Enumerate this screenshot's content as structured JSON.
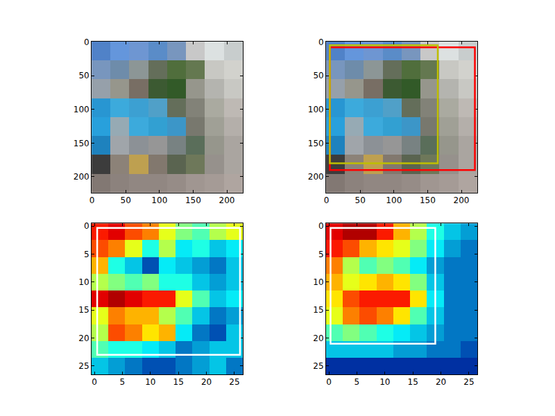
{
  "chart_data": [
    {
      "type": "image",
      "extent": [
        -0.5,
        223.5
      ],
      "pixels": [
        [
          [
            80,
            130,
            200
          ],
          [
            100,
            150,
            220
          ],
          [
            110,
            150,
            210
          ],
          [
            90,
            140,
            200
          ],
          [
            120,
            150,
            190
          ],
          [
            200,
            200,
            200
          ],
          [
            220,
            225,
            225
          ],
          [
            200,
            205,
            205
          ]
        ],
        [
          [
            120,
            150,
            190
          ],
          [
            110,
            140,
            170
          ],
          [
            140,
            150,
            150
          ],
          [
            100,
            110,
            90
          ],
          [
            80,
            110,
            60
          ],
          [
            100,
            120,
            80
          ],
          [
            200,
            200,
            195
          ],
          [
            210,
            210,
            205
          ]
        ],
        [
          [
            150,
            160,
            170
          ],
          [
            150,
            150,
            140
          ],
          [
            120,
            110,
            100
          ],
          [
            60,
            90,
            50
          ],
          [
            50,
            90,
            40
          ],
          [
            150,
            150,
            140
          ],
          [
            180,
            180,
            175
          ],
          [
            200,
            200,
            195
          ]
        ],
        [
          [
            40,
            150,
            210
          ],
          [
            60,
            170,
            220
          ],
          [
            60,
            160,
            210
          ],
          [
            80,
            160,
            200
          ],
          [
            100,
            110,
            90
          ],
          [
            130,
            130,
            120
          ],
          [
            170,
            170,
            160
          ],
          [
            190,
            185,
            180
          ]
        ],
        [
          [
            40,
            160,
            220
          ],
          [
            150,
            170,
            180
          ],
          [
            60,
            170,
            220
          ],
          [
            50,
            160,
            210
          ],
          [
            60,
            150,
            200
          ],
          [
            120,
            120,
            110
          ],
          [
            160,
            160,
            150
          ],
          [
            180,
            175,
            170
          ]
        ],
        [
          [
            30,
            130,
            190
          ],
          [
            160,
            165,
            170
          ],
          [
            140,
            145,
            150
          ],
          [
            150,
            150,
            150
          ],
          [
            120,
            130,
            130
          ],
          [
            90,
            110,
            90
          ],
          [
            150,
            150,
            140
          ],
          [
            170,
            165,
            160
          ]
        ],
        [
          [
            60,
            60,
            60
          ],
          [
            140,
            130,
            120
          ],
          [
            190,
            160,
            80
          ],
          [
            130,
            120,
            110
          ],
          [
            90,
            100,
            80
          ],
          [
            110,
            120,
            90
          ],
          [
            150,
            145,
            140
          ],
          [
            170,
            165,
            160
          ]
        ],
        [
          [
            130,
            120,
            115
          ],
          [
            140,
            130,
            125
          ],
          [
            145,
            135,
            130
          ],
          [
            145,
            135,
            130
          ],
          [
            150,
            140,
            135
          ],
          [
            160,
            150,
            145
          ],
          [
            165,
            155,
            150
          ],
          [
            175,
            165,
            160
          ]
        ]
      ],
      "xlim": [
        -0.5,
        223.5
      ],
      "ylim": [
        223.5,
        -0.5
      ],
      "xticks": [
        0,
        50,
        100,
        150,
        200
      ],
      "yticks": [
        0,
        50,
        100,
        150,
        200
      ],
      "boxes": []
    },
    {
      "type": "image",
      "extent": [
        -0.5,
        223.5
      ],
      "pixels": [
        [
          [
            80,
            130,
            200
          ],
          [
            100,
            150,
            220
          ],
          [
            110,
            150,
            210
          ],
          [
            90,
            140,
            200
          ],
          [
            120,
            150,
            190
          ],
          [
            200,
            200,
            200
          ],
          [
            220,
            225,
            225
          ],
          [
            200,
            205,
            205
          ]
        ],
        [
          [
            120,
            150,
            190
          ],
          [
            110,
            140,
            170
          ],
          [
            140,
            150,
            150
          ],
          [
            100,
            110,
            90
          ],
          [
            80,
            110,
            60
          ],
          [
            100,
            120,
            80
          ],
          [
            200,
            200,
            195
          ],
          [
            210,
            210,
            205
          ]
        ],
        [
          [
            150,
            160,
            170
          ],
          [
            150,
            150,
            140
          ],
          [
            120,
            110,
            100
          ],
          [
            60,
            90,
            50
          ],
          [
            50,
            90,
            40
          ],
          [
            150,
            150,
            140
          ],
          [
            180,
            180,
            175
          ],
          [
            200,
            200,
            195
          ]
        ],
        [
          [
            40,
            150,
            210
          ],
          [
            60,
            170,
            220
          ],
          [
            60,
            160,
            210
          ],
          [
            80,
            160,
            200
          ],
          [
            100,
            110,
            90
          ],
          [
            130,
            130,
            120
          ],
          [
            170,
            170,
            160
          ],
          [
            190,
            185,
            180
          ]
        ],
        [
          [
            40,
            160,
            220
          ],
          [
            150,
            170,
            180
          ],
          [
            60,
            170,
            220
          ],
          [
            50,
            160,
            210
          ],
          [
            60,
            150,
            200
          ],
          [
            120,
            120,
            110
          ],
          [
            160,
            160,
            150
          ],
          [
            180,
            175,
            170
          ]
        ],
        [
          [
            30,
            130,
            190
          ],
          [
            160,
            165,
            170
          ],
          [
            140,
            145,
            150
          ],
          [
            150,
            150,
            150
          ],
          [
            120,
            130,
            130
          ],
          [
            90,
            110,
            90
          ],
          [
            150,
            150,
            140
          ],
          [
            170,
            165,
            160
          ]
        ],
        [
          [
            60,
            60,
            60
          ],
          [
            140,
            130,
            120
          ],
          [
            190,
            160,
            80
          ],
          [
            130,
            120,
            110
          ],
          [
            90,
            100,
            80
          ],
          [
            110,
            120,
            90
          ],
          [
            150,
            145,
            140
          ],
          [
            170,
            165,
            160
          ]
        ],
        [
          [
            130,
            120,
            115
          ],
          [
            140,
            130,
            125
          ],
          [
            145,
            135,
            130
          ],
          [
            145,
            135,
            130
          ],
          [
            150,
            140,
            135
          ],
          [
            160,
            150,
            145
          ],
          [
            165,
            155,
            150
          ],
          [
            175,
            165,
            160
          ]
        ]
      ],
      "xlim": [
        -0.5,
        223.5
      ],
      "ylim": [
        223.5,
        -0.5
      ],
      "xticks": [
        0,
        50,
        100,
        150,
        200
      ],
      "yticks": [
        0,
        50,
        100,
        150,
        200
      ],
      "boxes": [
        {
          "x0": 5,
          "y0": 8,
          "x1": 220,
          "y1": 190,
          "color": "#ff0000"
        },
        {
          "x0": 5,
          "y0": 5,
          "x1": 165,
          "y1": 180,
          "color": "#bfbf00"
        }
      ]
    },
    {
      "type": "heatmap",
      "x": [
        1,
        4,
        7,
        10,
        13,
        16,
        19,
        22,
        25
      ],
      "y": [
        1,
        4,
        7,
        10,
        13,
        16,
        19,
        22,
        25
      ],
      "cells": [
        [
          0.85,
          0.9,
          0.8,
          0.75,
          0.6,
          0.5,
          0.45,
          0.55,
          0.6
        ],
        [
          0.8,
          0.75,
          0.6,
          0.4,
          0.55,
          0.35,
          0.4,
          0.3,
          0.35
        ],
        [
          0.7,
          0.4,
          0.3,
          0.15,
          0.35,
          0.3,
          0.25,
          0.2,
          0.3
        ],
        [
          0.55,
          0.5,
          0.45,
          0.5,
          0.4,
          0.4,
          0.3,
          0.25,
          0.3
        ],
        [
          0.9,
          0.95,
          0.9,
          0.85,
          0.85,
          0.6,
          0.45,
          0.3,
          0.35
        ],
        [
          0.6,
          0.75,
          0.7,
          0.7,
          0.55,
          0.45,
          0.3,
          0.2,
          0.25
        ],
        [
          0.55,
          0.8,
          0.75,
          0.65,
          0.7,
          0.35,
          0.2,
          0.15,
          0.3
        ],
        [
          0.45,
          0.4,
          0.4,
          0.35,
          0.3,
          0.2,
          0.25,
          0.3,
          0.3
        ],
        [
          0.3,
          0.25,
          0.2,
          0.15,
          0.15,
          0.2,
          0.25,
          0.3,
          0.2
        ]
      ],
      "zlim": [
        0,
        1
      ],
      "xlim": [
        -0.5,
        26.5
      ],
      "ylim": [
        26.5,
        -0.5
      ],
      "xticks": [
        0,
        5,
        10,
        15,
        20,
        25
      ],
      "yticks": [
        0,
        5,
        10,
        15,
        20,
        25
      ],
      "boxes": [
        {
          "x0": 0.5,
          "y0": 0.3,
          "x1": 26,
          "y1": 23,
          "color": "#ffffff"
        }
      ]
    },
    {
      "type": "heatmap",
      "x": [
        1,
        4,
        7,
        10,
        13,
        16,
        19,
        22,
        25
      ],
      "y": [
        1,
        4,
        7,
        10,
        13,
        16,
        19,
        22,
        25
      ],
      "cells": [
        [
          0.9,
          0.95,
          0.95,
          0.85,
          0.7,
          0.55,
          0.4,
          0.3,
          0.25
        ],
        [
          0.85,
          0.8,
          0.7,
          0.65,
          0.6,
          0.5,
          0.35,
          0.25,
          0.2
        ],
        [
          0.75,
          0.55,
          0.45,
          0.5,
          0.45,
          0.35,
          0.25,
          0.2,
          0.2
        ],
        [
          0.7,
          0.6,
          0.65,
          0.7,
          0.65,
          0.5,
          0.3,
          0.2,
          0.2
        ],
        [
          0.65,
          0.8,
          0.85,
          0.85,
          0.85,
          0.65,
          0.35,
          0.2,
          0.2
        ],
        [
          0.6,
          0.75,
          0.8,
          0.75,
          0.65,
          0.45,
          0.3,
          0.2,
          0.2
        ],
        [
          0.45,
          0.5,
          0.45,
          0.4,
          0.35,
          0.3,
          0.25,
          0.2,
          0.2
        ],
        [
          0.3,
          0.3,
          0.3,
          0.3,
          0.25,
          0.25,
          0.2,
          0.2,
          0.15
        ],
        [
          0.1,
          0.1,
          0.1,
          0.1,
          0.1,
          0.1,
          0.1,
          0.1,
          0.1
        ]
      ],
      "zlim": [
        0,
        1
      ],
      "xlim": [
        -0.5,
        26.5
      ],
      "ylim": [
        26.5,
        -0.5
      ],
      "xticks": [
        0,
        5,
        10,
        15,
        20,
        25
      ],
      "yticks": [
        0,
        5,
        10,
        15,
        20,
        25
      ],
      "boxes": [
        {
          "x0": 0.3,
          "y0": 0.3,
          "x1": 19,
          "y1": 21,
          "color": "#ffffff"
        }
      ]
    }
  ]
}
